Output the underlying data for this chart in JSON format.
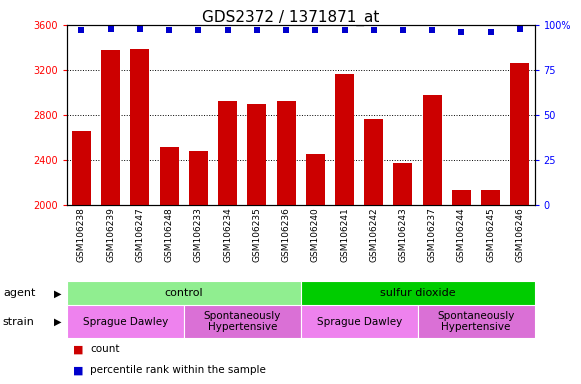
{
  "title": "GDS2372 / 1371871_at",
  "samples": [
    "GSM106238",
    "GSM106239",
    "GSM106247",
    "GSM106248",
    "GSM106233",
    "GSM106234",
    "GSM106235",
    "GSM106236",
    "GSM106240",
    "GSM106241",
    "GSM106242",
    "GSM106243",
    "GSM106237",
    "GSM106244",
    "GSM106245",
    "GSM106246"
  ],
  "counts": [
    2660,
    3380,
    3390,
    2510,
    2480,
    2920,
    2900,
    2920,
    2450,
    3160,
    2760,
    2370,
    2980,
    2130,
    2130,
    3260
  ],
  "percentile_values": [
    97,
    98,
    98,
    97,
    97,
    97,
    97,
    97,
    97,
    97,
    97,
    97,
    97,
    96,
    96,
    98
  ],
  "bar_color": "#cc0000",
  "dot_color": "#0000cc",
  "ylim_left": [
    2000,
    3600
  ],
  "ylim_right": [
    0,
    100
  ],
  "yticks_left": [
    2000,
    2400,
    2800,
    3200,
    3600
  ],
  "yticks_right": [
    0,
    25,
    50,
    75,
    100
  ],
  "yright_labels": [
    "0",
    "25",
    "50",
    "75",
    "100%"
  ],
  "agent_groups": [
    {
      "label": "control",
      "start": 0,
      "end": 8,
      "color": "#90ee90"
    },
    {
      "label": "sulfur dioxide",
      "start": 8,
      "end": 16,
      "color": "#00cc00"
    }
  ],
  "strain_groups": [
    {
      "label": "Sprague Dawley",
      "start": 0,
      "end": 4,
      "color": "#ee82ee"
    },
    {
      "label": "Spontaneously\nHypertensive",
      "start": 4,
      "end": 8,
      "color": "#da70d6"
    },
    {
      "label": "Sprague Dawley",
      "start": 8,
      "end": 12,
      "color": "#ee82ee"
    },
    {
      "label": "Spontaneously\nHypertensive",
      "start": 12,
      "end": 16,
      "color": "#da70d6"
    }
  ],
  "legend_items": [
    {
      "label": "count",
      "color": "#cc0000"
    },
    {
      "label": "percentile rank within the sample",
      "color": "#0000cc"
    }
  ],
  "background_color": "#ffffff",
  "plot_bg_color": "#ffffff",
  "title_fontsize": 11,
  "tick_fontsize": 7,
  "bar_label_fontsize": 6.5
}
